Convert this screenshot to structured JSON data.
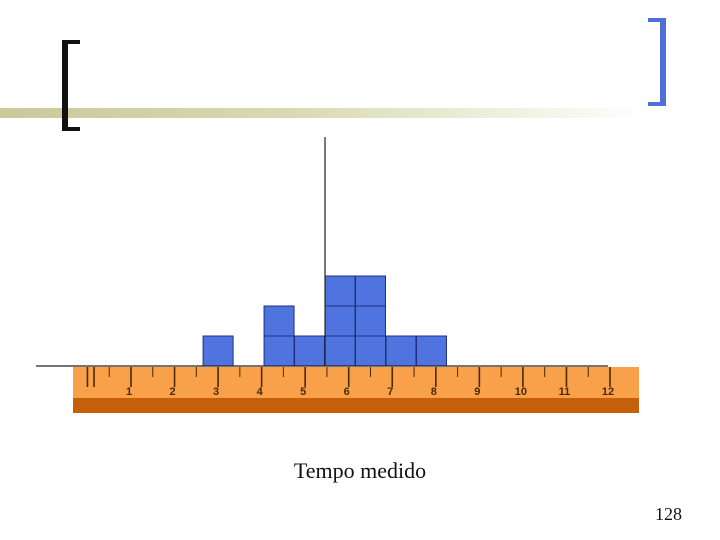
{
  "slide": {
    "caption": "Tempo medido",
    "page_number": "128"
  },
  "colors": {
    "block": "#4f74e0",
    "block_stroke": "#1f2f80",
    "ruler_body": "#f9a04b",
    "ruler_base": "#c4600a",
    "tick": "#4a2a00",
    "bracket_left": "#111111",
    "bracket_right": "#4f6fd6"
  },
  "diagram": {
    "ruler_labels": [
      "1",
      "2",
      "3",
      "4",
      "5",
      "6",
      "7",
      "8",
      "9",
      "10",
      "11",
      "12"
    ],
    "ruler_min": 0,
    "ruler_max": 12,
    "block_columns": [
      {
        "value": 3,
        "count": 1
      },
      {
        "value": 4.4,
        "count": 2
      },
      {
        "value": 5.1,
        "count": 1
      },
      {
        "value": 5.8,
        "count": 3
      },
      {
        "value": 6.5,
        "count": 3
      },
      {
        "value": 7.2,
        "count": 1
      },
      {
        "value": 7.9,
        "count": 1
      }
    ],
    "marker_value": 5.8
  }
}
